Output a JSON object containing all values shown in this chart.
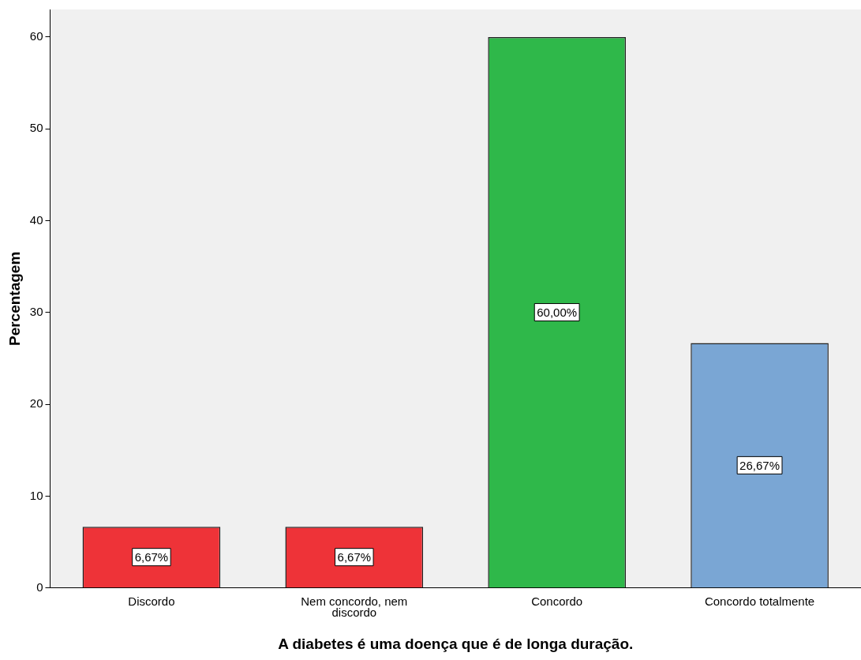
{
  "chart_data": {
    "type": "bar",
    "xlabel": "A diabetes é uma doença que é de longa duração.",
    "ylabel": "Percentagem",
    "categories": [
      "Discordo",
      "Nem concordo, nem discordo",
      "Concordo",
      "Concordo totalmente"
    ],
    "values": [
      6.67,
      6.67,
      60,
      26.67
    ],
    "colors": [
      "#ee3338",
      "#ee3338",
      "#2fb84a",
      "#7aa6d4"
    ],
    "value_labels": [
      "6,67%",
      "6,67%",
      "60,00%",
      "26,67%"
    ],
    "ylim": [
      0,
      63
    ],
    "yticks": [
      0,
      10,
      20,
      30,
      40,
      50,
      60
    ],
    "grid": false,
    "legend": false
  }
}
